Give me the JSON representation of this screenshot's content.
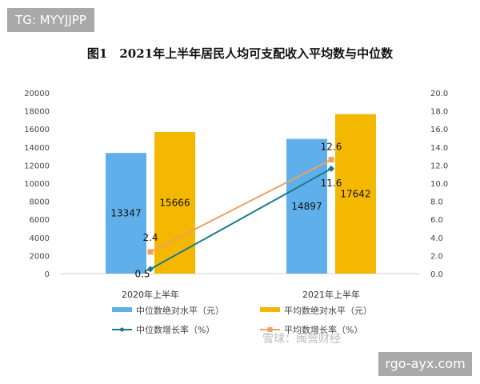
{
  "watermark_top": "TG: MYYJJPP",
  "watermark_site": "rgo-ayx.com",
  "watermark_source": "雪球：闽营财经",
  "chart_data": {
    "type": "bar",
    "title": "图1　2021年上半年居民人均可支配收入平均数与中位数",
    "categories": [
      "2020年上半年",
      "2021年上半年"
    ],
    "left_axis": {
      "ylim": [
        0,
        20000
      ],
      "ticks": [
        "0",
        "2000",
        "4000",
        "6000",
        "8000",
        "10000",
        "12000",
        "14000",
        "16000",
        "18000",
        "20000"
      ]
    },
    "right_axis": {
      "ylim": [
        0,
        20
      ],
      "ticks": [
        "0.0",
        "2.0",
        "4.0",
        "6.0",
        "8.0",
        "10.0",
        "12.0",
        "14.0",
        "16.0",
        "18.0",
        "20.0"
      ]
    },
    "bar_series": [
      {
        "name": "中位数绝对水平（元）",
        "color": "#5fb0ea",
        "values": [
          13347,
          14897
        ]
      },
      {
        "name": "平均数绝对水平（元）",
        "color": "#f5b800",
        "values": [
          15666,
          17642
        ]
      }
    ],
    "line_series": [
      {
        "name": "中位数增长率（%）",
        "color": "#1a7a8a",
        "values": [
          0.5,
          11.6
        ],
        "labels": [
          "0.5",
          "11.6"
        ]
      },
      {
        "name": "平均数增长率（%）",
        "color": "#f0a060",
        "values": [
          2.4,
          12.6
        ],
        "labels": [
          "2.4",
          "12.6"
        ]
      }
    ],
    "grid": false,
    "legend": "bottom"
  }
}
